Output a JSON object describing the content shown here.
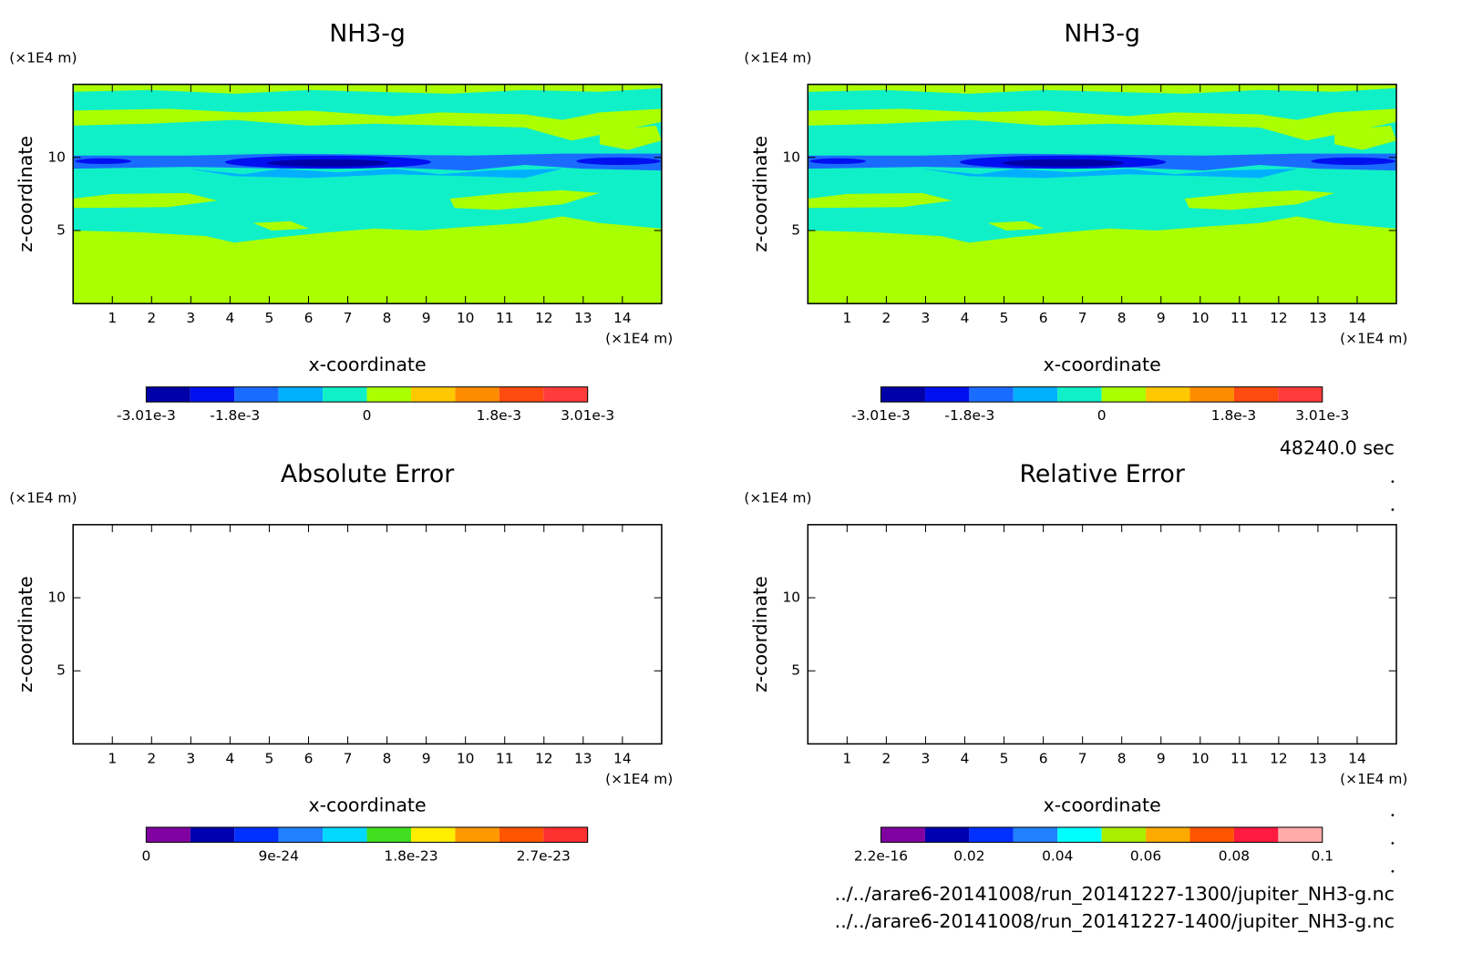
{
  "chart_data": [
    {
      "type": "contour",
      "title": "NH3-g",
      "xlabel": "x-coordinate",
      "ylabel": "z-coordinate",
      "xunit": "(×1E4 m)",
      "yunit": "(×1E4 m)",
      "filled": true,
      "xlim": [
        0,
        15
      ],
      "ylim": [
        0,
        15
      ],
      "xticks": [
        1,
        2,
        3,
        4,
        5,
        6,
        7,
        8,
        9,
        10,
        11,
        12,
        13,
        14
      ],
      "yticks": [
        5,
        10
      ],
      "colorbar": {
        "lim": [
          -0.00301,
          0.00301
        ],
        "colors": [
          "#0000a8",
          "#0010f0",
          "#1a6cff",
          "#00b0ff",
          "#10f0c8",
          "#aaff00",
          "#ffc800",
          "#ff8c00",
          "#ff4a10",
          "#ff3c3c"
        ],
        "ticks": [
          {
            "value": -0.00301,
            "label": "-3.01e-3"
          },
          {
            "value": -0.0018,
            "label": "-1.8e-3"
          },
          0,
          {
            "value": 0.0018,
            "label": "1.8e-3"
          },
          {
            "value": 0.00301,
            "label": "3.01e-3"
          }
        ]
      }
    },
    {
      "type": "contour",
      "title": "NH3-g",
      "xlabel": "x-coordinate",
      "ylabel": "z-coordinate",
      "xunit": "(×1E4 m)",
      "yunit": "(×1E4 m)",
      "filled": true,
      "xlim": [
        0,
        15
      ],
      "ylim": [
        0,
        15
      ],
      "xticks": [
        1,
        2,
        3,
        4,
        5,
        6,
        7,
        8,
        9,
        10,
        11,
        12,
        13,
        14
      ],
      "yticks": [
        5,
        10
      ],
      "colorbar": {
        "lim": [
          -0.00301,
          0.00301
        ],
        "colors": [
          "#0000a8",
          "#0010f0",
          "#1a6cff",
          "#00b0ff",
          "#10f0c8",
          "#aaff00",
          "#ffc800",
          "#ff8c00",
          "#ff4a10",
          "#ff3c3c"
        ],
        "ticks": [
          {
            "value": -0.00301,
            "label": "-3.01e-3"
          },
          {
            "value": -0.0018,
            "label": "-1.8e-3"
          },
          0,
          {
            "value": 0.0018,
            "label": "1.8e-3"
          },
          {
            "value": 0.00301,
            "label": "3.01e-3"
          }
        ]
      }
    },
    {
      "type": "contour",
      "title": "Absolute Error",
      "xlabel": "x-coordinate",
      "ylabel": "z-coordinate",
      "xunit": "(×1E4 m)",
      "yunit": "(×1E4 m)",
      "filled": false,
      "xlim": [
        0,
        15
      ],
      "ylim": [
        0,
        15
      ],
      "xticks": [
        1,
        2,
        3,
        4,
        5,
        6,
        7,
        8,
        9,
        10,
        11,
        12,
        13,
        14
      ],
      "yticks": [
        5,
        10
      ],
      "colorbar": {
        "lim": [
          0,
          3e-23
        ],
        "colors": [
          "#8000a0",
          "#0000b0",
          "#0030ff",
          "#2080ff",
          "#00d8ff",
          "#40e020",
          "#ffee00",
          "#ff9900",
          "#ff5500",
          "#ff3030"
        ],
        "ticks": [
          0,
          9e-24,
          1.8e-23,
          2.7e-23
        ]
      }
    },
    {
      "type": "contour",
      "title": "Relative Error",
      "xlabel": "x-coordinate",
      "ylabel": "z-coordinate",
      "xunit": "(×1E4 m)",
      "yunit": "(×1E4 m)",
      "filled": false,
      "xlim": [
        0,
        15
      ],
      "ylim": [
        0,
        15
      ],
      "xticks": [
        1,
        2,
        3,
        4,
        5,
        6,
        7,
        8,
        9,
        10,
        11,
        12,
        13,
        14
      ],
      "yticks": [
        5,
        10
      ],
      "colorbar": {
        "lim": [
          2.2e-16,
          0.1
        ],
        "colors": [
          "#8000a0",
          "#0000b0",
          "#0030ff",
          "#2080ff",
          "#00ffff",
          "#aaee00",
          "#ffaa00",
          "#ff5500",
          "#ff1a40",
          "#ffaaaa"
        ],
        "ticks": [
          2.2e-16,
          0.02,
          0.04,
          0.06,
          0.08,
          0.1
        ]
      }
    }
  ],
  "time_label": "48240.0 sec",
  "files": [
    "../../arare6-20141008/run_20141227-1300/jupiter_NH3-g.nc",
    "../../arare6-20141008/run_20141227-1400/jupiter_NH3-g.nc"
  ]
}
